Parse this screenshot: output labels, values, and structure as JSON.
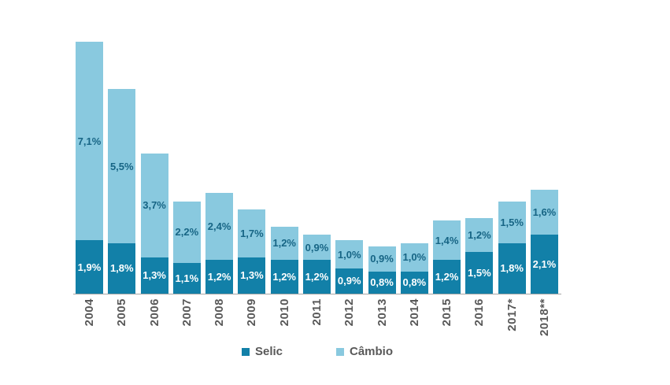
{
  "chart_data": {
    "type": "bar",
    "variant": "stacked-column",
    "title": "",
    "xlabel": "",
    "ylabel": "",
    "ylim": [
      0,
      9.2
    ],
    "grid": false,
    "legend_position": "bottom",
    "axis_line_color": "#a6a6a6",
    "tick_label_color": "#595959",
    "categories": [
      "2004",
      "2005",
      "2006",
      "2007",
      "2008",
      "2009",
      "2010",
      "2011",
      "2012",
      "2013",
      "2014",
      "2015",
      "2016",
      "2017*",
      "2018**"
    ],
    "series": [
      {
        "name": "Selic",
        "color": "#1280a8",
        "label_color": "#ffffff",
        "values": [
          1.9,
          1.8,
          1.3,
          1.1,
          1.2,
          1.3,
          1.2,
          1.2,
          0.9,
          0.8,
          0.8,
          1.2,
          1.5,
          1.8,
          2.1
        ],
        "labels": [
          "1,9%",
          "1,8%",
          "1,3%",
          "1,1%",
          "1,2%",
          "1,3%",
          "1,2%",
          "1,2%",
          "0,9%",
          "0,8%",
          "0,8%",
          "1,2%",
          "1,5%",
          "1,8%",
          "2,1%"
        ]
      },
      {
        "name": "Câmbio",
        "color": "#89c9df",
        "label_color": "#176585",
        "values": [
          7.1,
          5.5,
          3.7,
          2.2,
          2.4,
          1.7,
          1.2,
          0.9,
          1.0,
          0.9,
          1.0,
          1.4,
          1.2,
          1.5,
          1.6
        ],
        "labels": [
          "7,1%",
          "5,5%",
          "3,7%",
          "2,2%",
          "2,4%",
          "1,7%",
          "1,2%",
          "0,9%",
          "1,0%",
          "0,9%",
          "1,0%",
          "1,4%",
          "1,2%",
          "1,5%",
          "1,6%"
        ]
      }
    ]
  }
}
